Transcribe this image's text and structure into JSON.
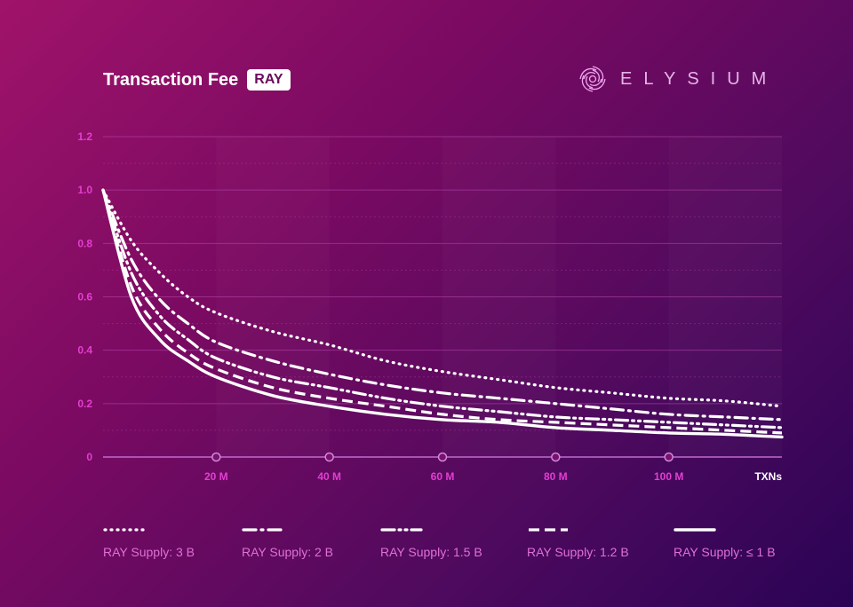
{
  "header": {
    "title": "Transaction Fee",
    "badge": "RAY",
    "brand": "ELYSIUM"
  },
  "colors": {
    "axis_tick": "#e23fd0",
    "grid": "#b84aae",
    "line": "#ffffff",
    "legend_text": "#e070d6"
  },
  "chart_data": {
    "type": "line",
    "title": "Transaction Fee",
    "xlabel": "TXNs",
    "ylabel": "",
    "xlim": [
      0,
      120
    ],
    "ylim": [
      0,
      1.2
    ],
    "x_ticks": [
      20,
      40,
      60,
      80,
      100
    ],
    "x_tick_labels": [
      "20 M",
      "40 M",
      "60 M",
      "80 M",
      "100 M"
    ],
    "x_axis_end_label": "TXNs",
    "y_ticks": [
      0,
      0.2,
      0.4,
      0.6,
      0.8,
      1.0,
      1.2
    ],
    "y_tick_labels": [
      "0",
      "0.2",
      "0.4",
      "0.6",
      "0.8",
      "1.0",
      "1.2"
    ],
    "grid": true,
    "legend_position": "bottom",
    "x": [
      0,
      5,
      10,
      15,
      20,
      30,
      40,
      50,
      60,
      70,
      80,
      90,
      100,
      110,
      120
    ],
    "series": [
      {
        "name": "RAY Supply: 3 B",
        "style": "dotted",
        "values": [
          1.0,
          0.81,
          0.69,
          0.6,
          0.54,
          0.47,
          0.42,
          0.36,
          0.32,
          0.29,
          0.26,
          0.24,
          0.22,
          0.21,
          0.19
        ]
      },
      {
        "name": "RAY Supply: 2 B",
        "style": "dash-dot",
        "values": [
          1.0,
          0.74,
          0.59,
          0.5,
          0.43,
          0.36,
          0.31,
          0.27,
          0.24,
          0.22,
          0.2,
          0.18,
          0.16,
          0.15,
          0.14
        ]
      },
      {
        "name": "RAY Supply: 1.5 B",
        "style": "dash-dot-dot",
        "values": [
          1.0,
          0.69,
          0.53,
          0.44,
          0.37,
          0.3,
          0.26,
          0.22,
          0.19,
          0.17,
          0.15,
          0.14,
          0.13,
          0.12,
          0.11
        ]
      },
      {
        "name": "RAY Supply: 1.2 B",
        "style": "dashed",
        "values": [
          1.0,
          0.64,
          0.48,
          0.39,
          0.33,
          0.26,
          0.22,
          0.19,
          0.16,
          0.14,
          0.13,
          0.12,
          0.11,
          0.1,
          0.09
        ]
      },
      {
        "name": "RAY Supply: ≤ 1 B",
        "style": "solid",
        "values": [
          1.0,
          0.6,
          0.44,
          0.36,
          0.3,
          0.23,
          0.19,
          0.16,
          0.14,
          0.13,
          0.11,
          0.1,
          0.09,
          0.085,
          0.075
        ]
      }
    ]
  }
}
